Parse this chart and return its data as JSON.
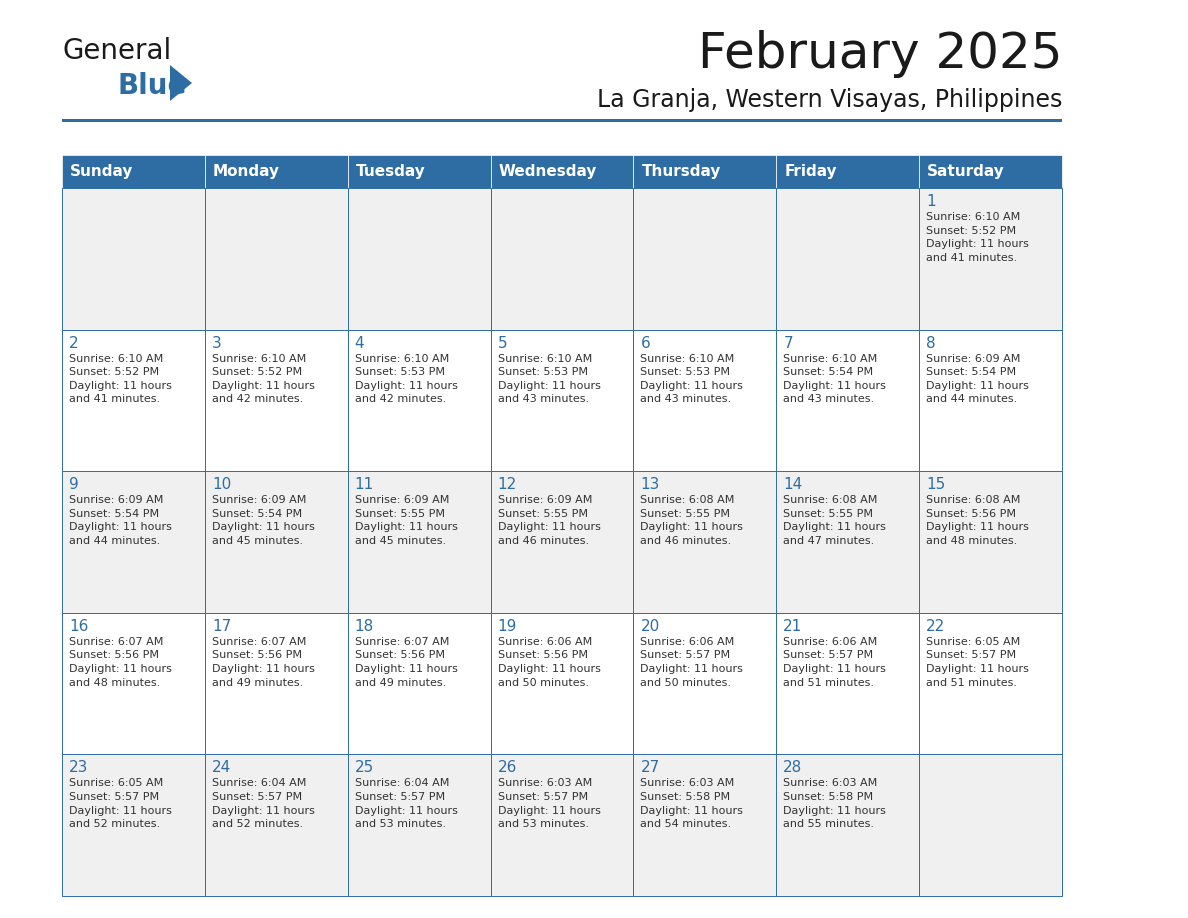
{
  "title": "February 2025",
  "subtitle": "La Granja, Western Visayas, Philippines",
  "header_bg": "#2E6DA4",
  "header_text_color": "#FFFFFF",
  "cell_bg_light": "#F0F0F0",
  "cell_bg_white": "#FFFFFF",
  "border_color": "#2E6DA4",
  "day_number_color": "#2E6DA4",
  "text_color": "#333333",
  "logo_general_color": "#1a1a1a",
  "logo_blue_color": "#2E6DA4",
  "days_of_week": [
    "Sunday",
    "Monday",
    "Tuesday",
    "Wednesday",
    "Thursday",
    "Friday",
    "Saturday"
  ],
  "weeks": [
    [
      {
        "day": "",
        "info": ""
      },
      {
        "day": "",
        "info": ""
      },
      {
        "day": "",
        "info": ""
      },
      {
        "day": "",
        "info": ""
      },
      {
        "day": "",
        "info": ""
      },
      {
        "day": "",
        "info": ""
      },
      {
        "day": "1",
        "info": "Sunrise: 6:10 AM\nSunset: 5:52 PM\nDaylight: 11 hours\nand 41 minutes."
      }
    ],
    [
      {
        "day": "2",
        "info": "Sunrise: 6:10 AM\nSunset: 5:52 PM\nDaylight: 11 hours\nand 41 minutes."
      },
      {
        "day": "3",
        "info": "Sunrise: 6:10 AM\nSunset: 5:52 PM\nDaylight: 11 hours\nand 42 minutes."
      },
      {
        "day": "4",
        "info": "Sunrise: 6:10 AM\nSunset: 5:53 PM\nDaylight: 11 hours\nand 42 minutes."
      },
      {
        "day": "5",
        "info": "Sunrise: 6:10 AM\nSunset: 5:53 PM\nDaylight: 11 hours\nand 43 minutes."
      },
      {
        "day": "6",
        "info": "Sunrise: 6:10 AM\nSunset: 5:53 PM\nDaylight: 11 hours\nand 43 minutes."
      },
      {
        "day": "7",
        "info": "Sunrise: 6:10 AM\nSunset: 5:54 PM\nDaylight: 11 hours\nand 43 minutes."
      },
      {
        "day": "8",
        "info": "Sunrise: 6:09 AM\nSunset: 5:54 PM\nDaylight: 11 hours\nand 44 minutes."
      }
    ],
    [
      {
        "day": "9",
        "info": "Sunrise: 6:09 AM\nSunset: 5:54 PM\nDaylight: 11 hours\nand 44 minutes."
      },
      {
        "day": "10",
        "info": "Sunrise: 6:09 AM\nSunset: 5:54 PM\nDaylight: 11 hours\nand 45 minutes."
      },
      {
        "day": "11",
        "info": "Sunrise: 6:09 AM\nSunset: 5:55 PM\nDaylight: 11 hours\nand 45 minutes."
      },
      {
        "day": "12",
        "info": "Sunrise: 6:09 AM\nSunset: 5:55 PM\nDaylight: 11 hours\nand 46 minutes."
      },
      {
        "day": "13",
        "info": "Sunrise: 6:08 AM\nSunset: 5:55 PM\nDaylight: 11 hours\nand 46 minutes."
      },
      {
        "day": "14",
        "info": "Sunrise: 6:08 AM\nSunset: 5:55 PM\nDaylight: 11 hours\nand 47 minutes."
      },
      {
        "day": "15",
        "info": "Sunrise: 6:08 AM\nSunset: 5:56 PM\nDaylight: 11 hours\nand 48 minutes."
      }
    ],
    [
      {
        "day": "16",
        "info": "Sunrise: 6:07 AM\nSunset: 5:56 PM\nDaylight: 11 hours\nand 48 minutes."
      },
      {
        "day": "17",
        "info": "Sunrise: 6:07 AM\nSunset: 5:56 PM\nDaylight: 11 hours\nand 49 minutes."
      },
      {
        "day": "18",
        "info": "Sunrise: 6:07 AM\nSunset: 5:56 PM\nDaylight: 11 hours\nand 49 minutes."
      },
      {
        "day": "19",
        "info": "Sunrise: 6:06 AM\nSunset: 5:56 PM\nDaylight: 11 hours\nand 50 minutes."
      },
      {
        "day": "20",
        "info": "Sunrise: 6:06 AM\nSunset: 5:57 PM\nDaylight: 11 hours\nand 50 minutes."
      },
      {
        "day": "21",
        "info": "Sunrise: 6:06 AM\nSunset: 5:57 PM\nDaylight: 11 hours\nand 51 minutes."
      },
      {
        "day": "22",
        "info": "Sunrise: 6:05 AM\nSunset: 5:57 PM\nDaylight: 11 hours\nand 51 minutes."
      }
    ],
    [
      {
        "day": "23",
        "info": "Sunrise: 6:05 AM\nSunset: 5:57 PM\nDaylight: 11 hours\nand 52 minutes."
      },
      {
        "day": "24",
        "info": "Sunrise: 6:04 AM\nSunset: 5:57 PM\nDaylight: 11 hours\nand 52 minutes."
      },
      {
        "day": "25",
        "info": "Sunrise: 6:04 AM\nSunset: 5:57 PM\nDaylight: 11 hours\nand 53 minutes."
      },
      {
        "day": "26",
        "info": "Sunrise: 6:03 AM\nSunset: 5:57 PM\nDaylight: 11 hours\nand 53 minutes."
      },
      {
        "day": "27",
        "info": "Sunrise: 6:03 AM\nSunset: 5:58 PM\nDaylight: 11 hours\nand 54 minutes."
      },
      {
        "day": "28",
        "info": "Sunrise: 6:03 AM\nSunset: 5:58 PM\nDaylight: 11 hours\nand 55 minutes."
      },
      {
        "day": "",
        "info": ""
      }
    ]
  ]
}
